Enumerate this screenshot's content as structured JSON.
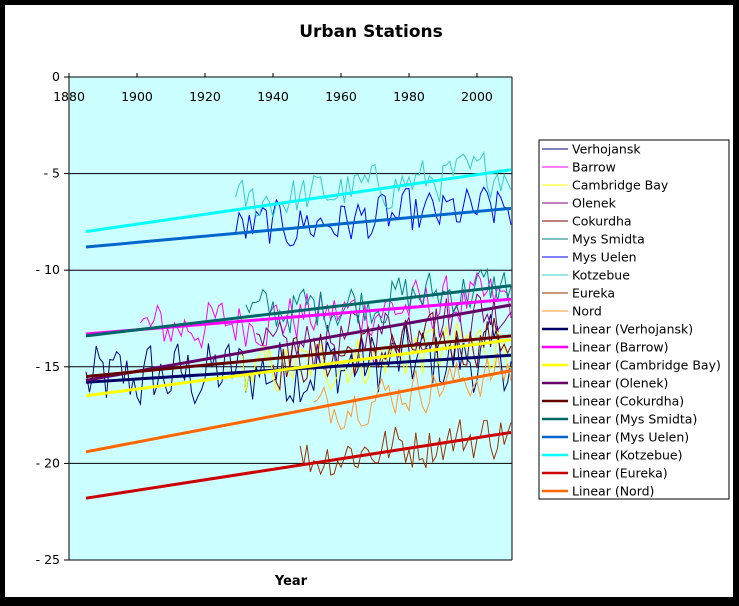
{
  "chart_data": {
    "type": "line",
    "title": "Urban Stations",
    "xlabel": "Year",
    "ylabel": "",
    "xlim": [
      1880,
      2010
    ],
    "ylim": [
      -25,
      0
    ],
    "xticks": [
      "1880",
      "1900",
      "1920",
      "1940",
      "1960",
      "1980",
      "2000"
    ],
    "yticks": [
      "0",
      "-5",
      "-10",
      "-15",
      "-20",
      "-25"
    ],
    "grid": "horizontal",
    "legend_position": "right",
    "plot_background": "#ccffff",
    "series": [
      {
        "name": "Verhojansk",
        "color": "#000080",
        "kind": "data",
        "start": 1885,
        "end": 2010,
        "mean_start": -15.8,
        "mean_end": -14.4,
        "amp": 1.8
      },
      {
        "name": "Barrow",
        "color": "#ff00ff",
        "kind": "data",
        "start": 1901,
        "end": 2010,
        "mean_start": -13.1,
        "mean_end": -11.5,
        "amp": 1.3
      },
      {
        "name": "Cambridge Bay",
        "color": "#ffff00",
        "kind": "data",
        "start": 1930,
        "end": 2010,
        "mean_start": -15.4,
        "mean_end": -13.6,
        "amp": 1.3
      },
      {
        "name": "Olenek",
        "color": "#800080",
        "kind": "data",
        "start": 1935,
        "end": 2010,
        "mean_start": -14.6,
        "mean_end": -11.8,
        "amp": 1.4
      },
      {
        "name": "Cokurdha",
        "color": "#800000",
        "kind": "data",
        "start": 1940,
        "end": 2010,
        "mean_start": -14.7,
        "mean_end": -13.4,
        "amp": 1.3
      },
      {
        "name": "Mys Smidta",
        "color": "#008080",
        "kind": "data",
        "start": 1932,
        "end": 2010,
        "mean_start": -12.3,
        "mean_end": -10.8,
        "amp": 1.2
      },
      {
        "name": "Mys Uelen",
        "color": "#0000ff",
        "kind": "data",
        "start": 1929,
        "end": 2010,
        "mean_start": -7.9,
        "mean_end": -6.8,
        "amp": 1.2
      },
      {
        "name": "Kotzebue",
        "color": "#33cccc",
        "kind": "data",
        "start": 1929,
        "end": 2010,
        "mean_start": -6.6,
        "mean_end": -4.8,
        "amp": 1.1
      },
      {
        "name": "Eureka",
        "color": "#993300",
        "kind": "data",
        "start": 1948,
        "end": 2010,
        "mean_start": -19.8,
        "mean_end": -18.4,
        "amp": 1.2
      },
      {
        "name": "Nord",
        "color": "#ff9933",
        "kind": "data",
        "start": 1952,
        "end": 2010,
        "mean_start": -17.2,
        "mean_end": -15.2,
        "amp": 1.1
      }
    ],
    "trendlines": [
      {
        "name": "Linear (Verhojansk)",
        "color": "#000066",
        "x": [
          1885,
          2010
        ],
        "y": [
          -15.8,
          -14.4
        ]
      },
      {
        "name": "Linear (Barrow)",
        "color": "#ff00ff",
        "x": [
          1885,
          2010
        ],
        "y": [
          -13.3,
          -11.5
        ]
      },
      {
        "name": "Linear (Cambridge Bay)",
        "color": "#ffff00",
        "x": [
          1885,
          2010
        ],
        "y": [
          -16.5,
          -13.6
        ]
      },
      {
        "name": "Linear (Olenek)",
        "color": "#660066",
        "x": [
          1885,
          2010
        ],
        "y": [
          -15.7,
          -11.8
        ]
      },
      {
        "name": "Linear (Cokurdha)",
        "color": "#660000",
        "x": [
          1885,
          2010
        ],
        "y": [
          -15.5,
          -13.4
        ]
      },
      {
        "name": "Linear (Mys Smidta)",
        "color": "#006666",
        "x": [
          1885,
          2010
        ],
        "y": [
          -13.4,
          -10.8
        ]
      },
      {
        "name": "Linear (Mys Uelen)",
        "color": "#0066cc",
        "x": [
          1885,
          2010
        ],
        "y": [
          -8.8,
          -6.8
        ]
      },
      {
        "name": "Linear (Kotzebue)",
        "color": "#00ffff",
        "x": [
          1885,
          2010
        ],
        "y": [
          -8.0,
          -4.8
        ]
      },
      {
        "name": "Linear (Eureka)",
        "color": "#cc0000",
        "x": [
          1885,
          2010
        ],
        "y": [
          -21.8,
          -18.4
        ]
      },
      {
        "name": "Linear (Nord)",
        "color": "#ff6600",
        "x": [
          1885,
          2010
        ],
        "y": [
          -19.4,
          -15.2
        ]
      }
    ]
  }
}
